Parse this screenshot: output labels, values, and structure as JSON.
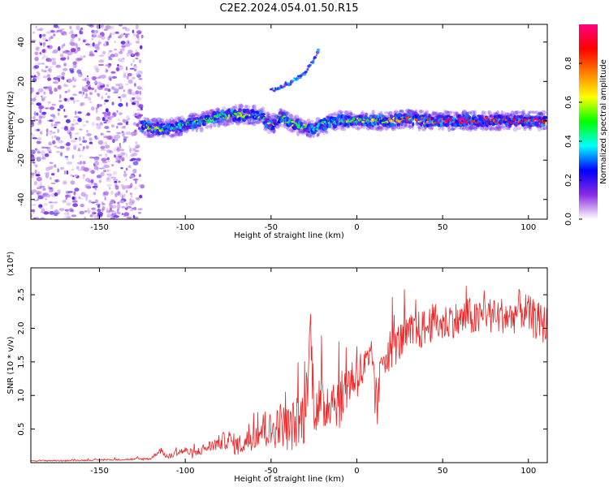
{
  "title": "C2E2.2024.054.01.50.R15",
  "chart_data": [
    {
      "type": "heatmap",
      "xlabel": "Height of straight line (km)",
      "ylabel": "Frequency (Hz)",
      "xlim": [
        -190,
        111
      ],
      "ylim": [
        -50,
        49
      ],
      "xticks": [
        -150,
        -100,
        -50,
        0,
        50,
        100
      ],
      "yticks": [
        -40,
        -20,
        0,
        20,
        40
      ],
      "grid": false,
      "colorbar": {
        "label": "Normalized spectral amplitude",
        "range": [
          0,
          1
        ],
        "ticks": [
          "0.0",
          "0.2",
          "0.4",
          "0.6",
          "0.8"
        ],
        "colors": [
          "#ffffff",
          "#8a2be2",
          "#0000ff",
          "#00ffff",
          "#00ff00",
          "#ffff00",
          "#ff8000",
          "#ff0000",
          "#ff0080"
        ]
      },
      "noise_region_x": [
        -190,
        -125
      ],
      "ridge": {
        "x": [
          -125,
          -115,
          -110,
          -100,
          -90,
          -80,
          -70,
          -60,
          -55,
          -50,
          -45,
          -40,
          -35,
          -30,
          -25,
          -20,
          -15,
          -10,
          -5,
          0,
          10,
          20,
          30,
          40,
          50,
          60,
          70,
          80,
          90,
          100,
          110
        ],
        "y": [
          -3,
          -4,
          -4,
          -2,
          0,
          2,
          3,
          3,
          2,
          -3,
          2,
          0,
          -2,
          -3,
          -4,
          -2,
          -1,
          0,
          0,
          0,
          0,
          0,
          1,
          0,
          0,
          0,
          0,
          0,
          0,
          0,
          0
        ],
        "amplitude": [
          0.55,
          0.65,
          0.4,
          0.45,
          0.5,
          0.5,
          0.55,
          0.55,
          0.5,
          0.6,
          0.55,
          0.5,
          0.5,
          0.5,
          0.4,
          0.4,
          0.45,
          0.45,
          0.5,
          0.55,
          0.6,
          0.65,
          0.75,
          0.7,
          0.85,
          0.9,
          0.85,
          0.85,
          0.9,
          0.85,
          0.9
        ]
      },
      "branch": {
        "x": [
          -50,
          -40,
          -30,
          -25,
          -22
        ],
        "y": [
          15,
          19,
          24,
          31,
          36
        ]
      }
    },
    {
      "type": "line",
      "xlabel": "Height of straight line (km)",
      "ylabel": "SNR (10 * v/v)",
      "y_multiplier": "(x10⁴)",
      "xlim": [
        -190,
        111
      ],
      "ylim": [
        0,
        29000
      ],
      "xticks": [
        -150,
        -100,
        -50,
        0,
        50,
        100
      ],
      "yticks": [
        5000,
        10000,
        15000,
        20000,
        25000
      ],
      "ytick_labels": [
        "0.5",
        "1.0",
        "1.5",
        "2.0",
        "2.5"
      ],
      "grid": false,
      "series": [
        {
          "color": "#ee2222",
          "x": [
            -190,
            -170,
            -150,
            -130,
            -120,
            -115,
            -112,
            -110,
            -105,
            -100,
            -95,
            -90,
            -85,
            -80,
            -75,
            -70,
            -65,
            -60,
            -55,
            -50,
            -45,
            -40,
            -35,
            -30,
            -27,
            -25,
            -20,
            -15,
            -10,
            -5,
            0,
            5,
            10,
            11,
            15,
            20,
            25,
            30,
            35,
            40,
            45,
            50,
            55,
            60,
            65,
            70,
            75,
            80,
            85,
            90,
            95,
            100,
            105,
            110
          ],
          "y": [
            300,
            300,
            400,
            500,
            600,
            1800,
            1200,
            800,
            1500,
            1800,
            1200,
            2000,
            2500,
            3000,
            3500,
            2500,
            3000,
            4000,
            5000,
            4500,
            6000,
            5000,
            6000,
            7000,
            20000,
            9000,
            8000,
            10000,
            9000,
            12000,
            13000,
            14000,
            15000,
            6000,
            16000,
            17000,
            18000,
            19000,
            19500,
            20000,
            21000,
            20500,
            21500,
            21000,
            22000,
            21000,
            22500,
            21500,
            22000,
            21500,
            23000,
            22000,
            21000,
            20500
          ],
          "noise_amplitude": [
            100,
            100,
            100,
            150,
            200,
            400,
            400,
            400,
            500,
            600,
            700,
            800,
            900,
            1200,
            1500,
            1600,
            1700,
            2000,
            2600,
            3000,
            3200,
            3500,
            4000,
            4500,
            4500,
            4500,
            4500,
            4200,
            4000,
            3800,
            3500,
            3500,
            3500,
            3500,
            3400,
            3200,
            3000,
            3000,
            3000,
            3000,
            2800,
            2800,
            2800,
            2800,
            2800,
            2800,
            2800,
            2800,
            2800,
            2800,
            3000,
            3000,
            3000,
            3000
          ]
        }
      ]
    }
  ]
}
